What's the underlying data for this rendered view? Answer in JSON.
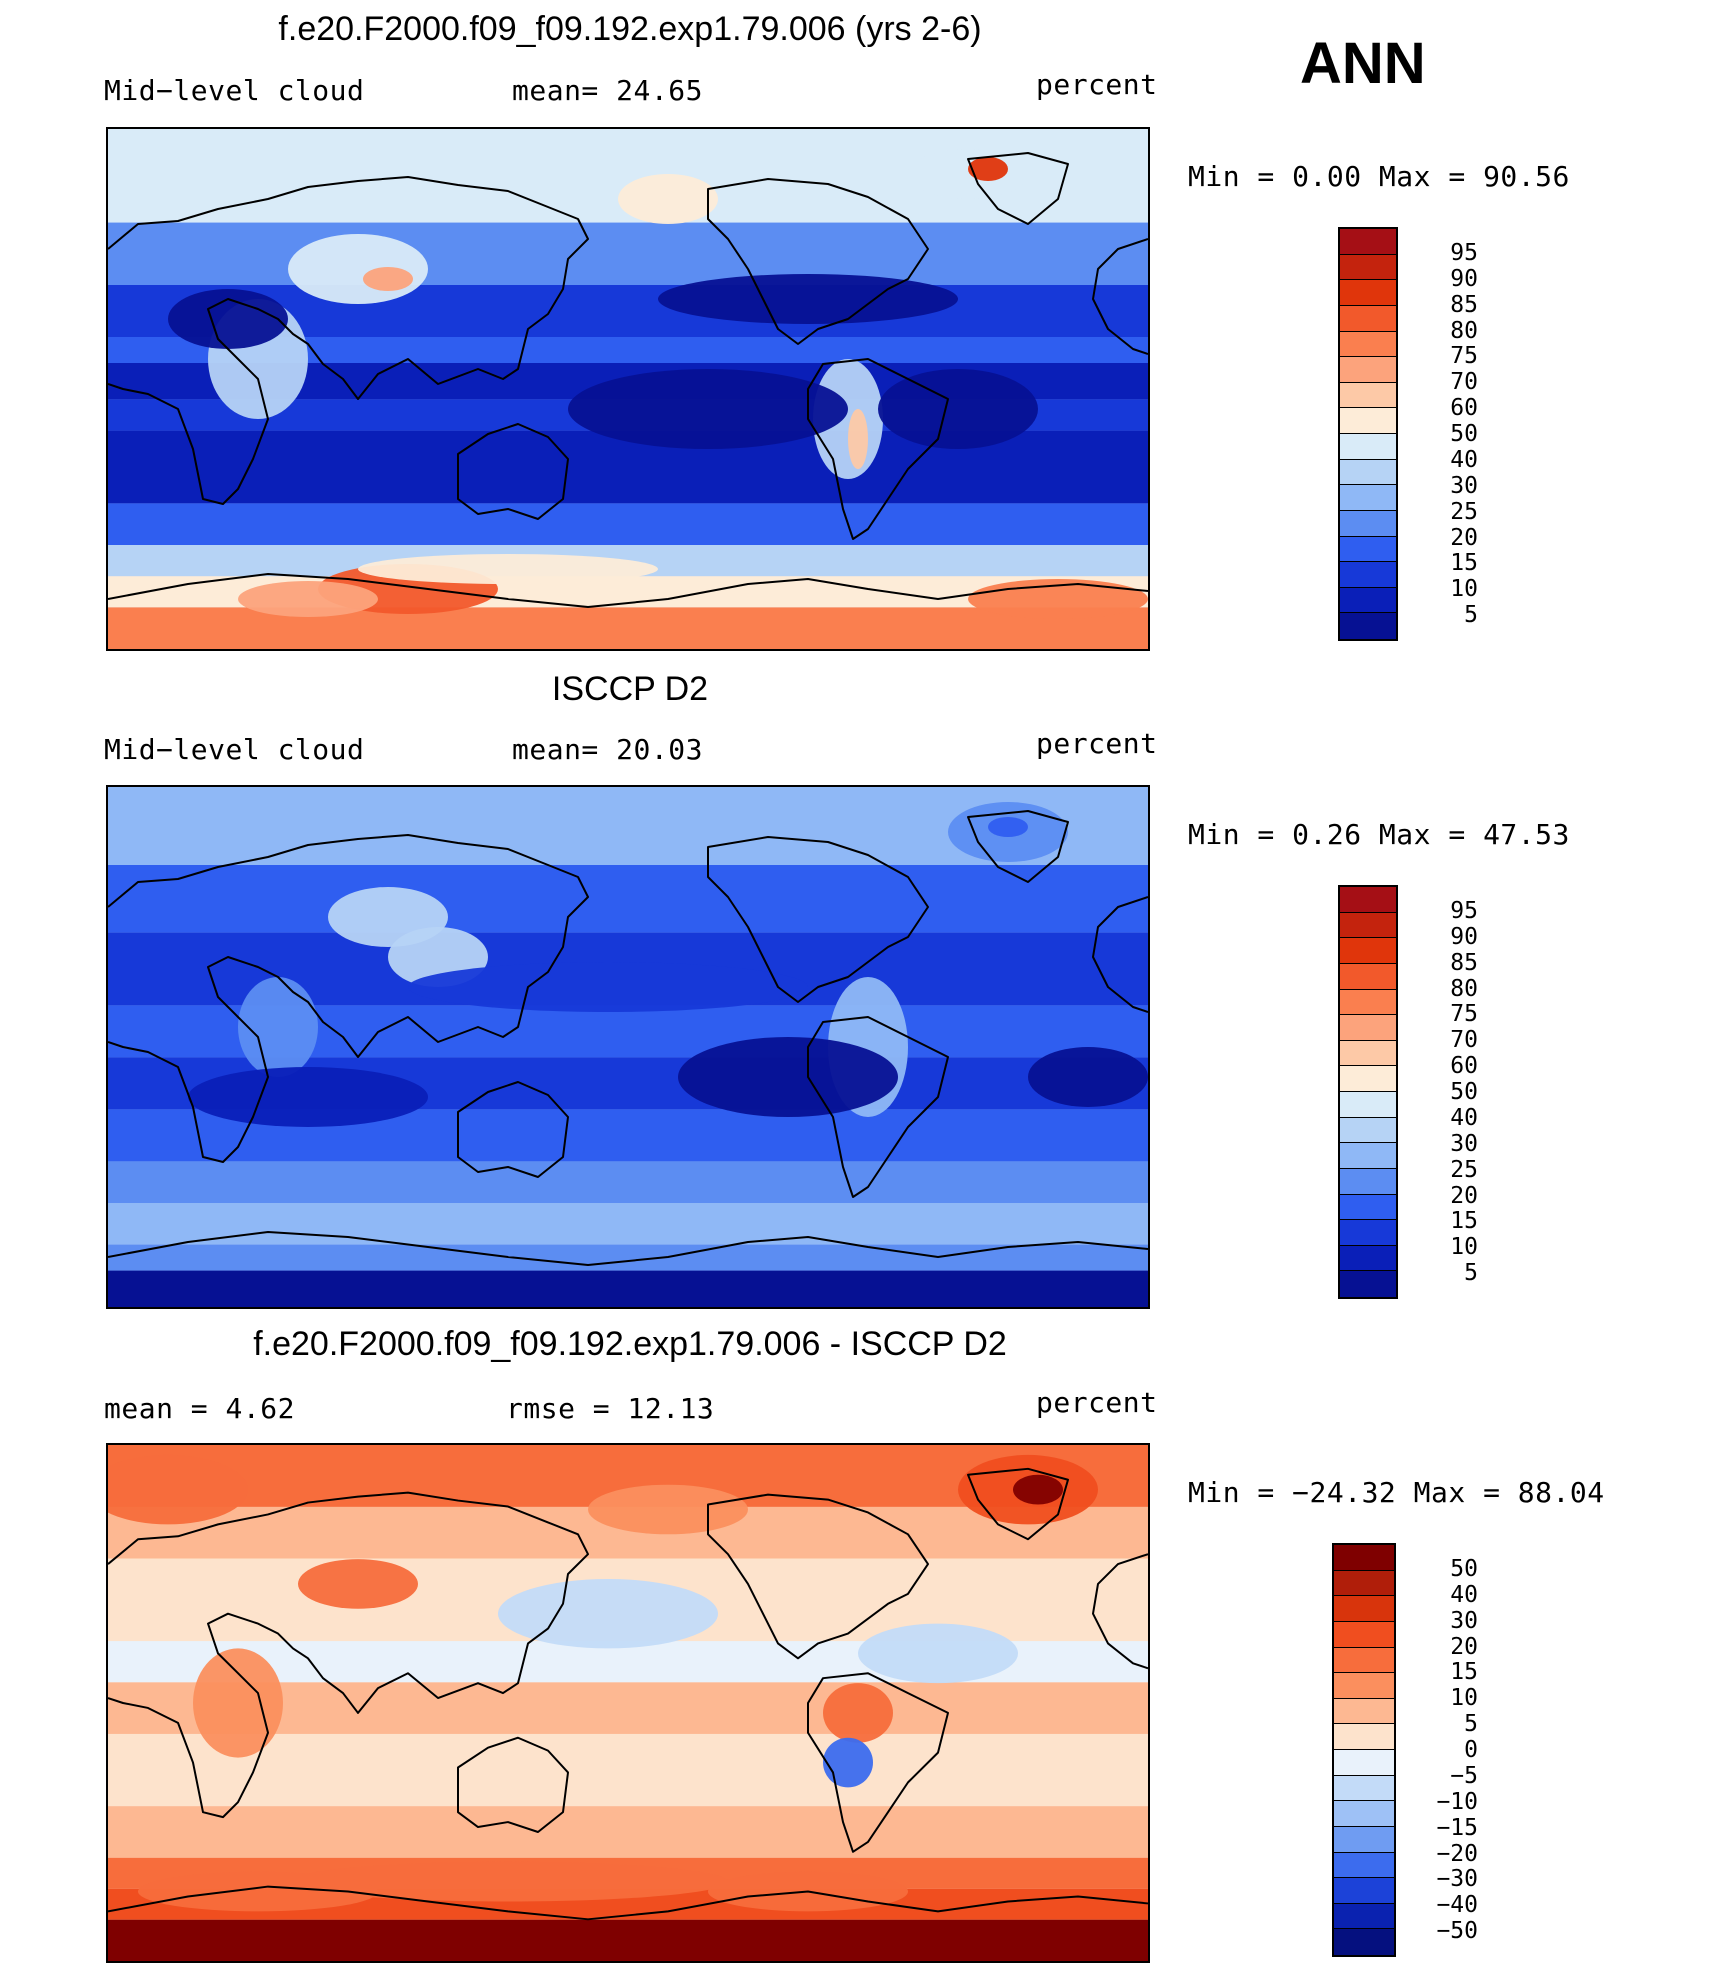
{
  "season": "ANN",
  "chart_data": [
    {
      "type": "heatmap",
      "title": "f.e20.F2000.f09_f09.192.exp1.79.006 (yrs 2-6)",
      "variable": "Mid−level cloud",
      "stat_text": "mean=   24.65",
      "mean": 24.65,
      "units": "percent",
      "min": 0.0,
      "max": 90.56,
      "minmax_text": "Min  =     0.00  Max  =    90.56",
      "levels": [
        "95",
        "90",
        "85",
        "80",
        "75",
        "70",
        "60",
        "50",
        "40",
        "30",
        "25",
        "20",
        "15",
        "10",
        "5"
      ],
      "colors": [
        "#a50f15",
        "#c4230d",
        "#e0350b",
        "#f2592b",
        "#fa7f4f",
        "#fca37c",
        "#fdc9a7",
        "#fdecd8",
        "#d9ebf8",
        "#b6d3f5",
        "#8fb8f6",
        "#5c8df2",
        "#2f5ef0",
        "#1739d8",
        "#0a1fb8",
        "#061193"
      ]
    },
    {
      "type": "heatmap",
      "title": "ISCCP D2",
      "variable": "Mid−level cloud",
      "stat_text": "mean=   20.03",
      "mean": 20.03,
      "units": "percent",
      "min": 0.26,
      "max": 47.53,
      "minmax_text": "Min  =     0.26  Max  =    47.53",
      "levels": [
        "95",
        "90",
        "85",
        "80",
        "75",
        "70",
        "60",
        "50",
        "40",
        "30",
        "25",
        "20",
        "15",
        "10",
        "5"
      ],
      "colors": [
        "#a50f15",
        "#c4230d",
        "#e0350b",
        "#f2592b",
        "#fa7f4f",
        "#fca37c",
        "#fdc9a7",
        "#fdecd8",
        "#d9ebf8",
        "#b6d3f5",
        "#8fb8f6",
        "#5c8df2",
        "#2f5ef0",
        "#1739d8",
        "#0a1fb8",
        "#061193"
      ]
    },
    {
      "type": "heatmap",
      "title": "f.e20.F2000.f09_f09.192.exp1.79.006 - ISCCP D2",
      "stat_text": "mean  =     4.62",
      "rmse_text": "rmse  =    12.13",
      "mean": 4.62,
      "rmse": 12.13,
      "units": "percent",
      "min": -24.32,
      "max": 88.04,
      "minmax_text": "Min  = −24.32  Max  =    88.04",
      "levels": [
        "50",
        "40",
        "30",
        "20",
        "15",
        "10",
        "5",
        "0",
        "−5",
        "−10",
        "−15",
        "−20",
        "−30",
        "−40",
        "−50"
      ],
      "colors": [
        "#7f0000",
        "#b01e0a",
        "#d8340c",
        "#f04e1f",
        "#f76d3c",
        "#fb8f5e",
        "#fdb892",
        "#fde3cc",
        "#e9f2fb",
        "#c3dbf8",
        "#9ec1f6",
        "#6f9cf2",
        "#3c6cee",
        "#1c42d8",
        "#0a22b0",
        "#05107f"
      ]
    }
  ]
}
